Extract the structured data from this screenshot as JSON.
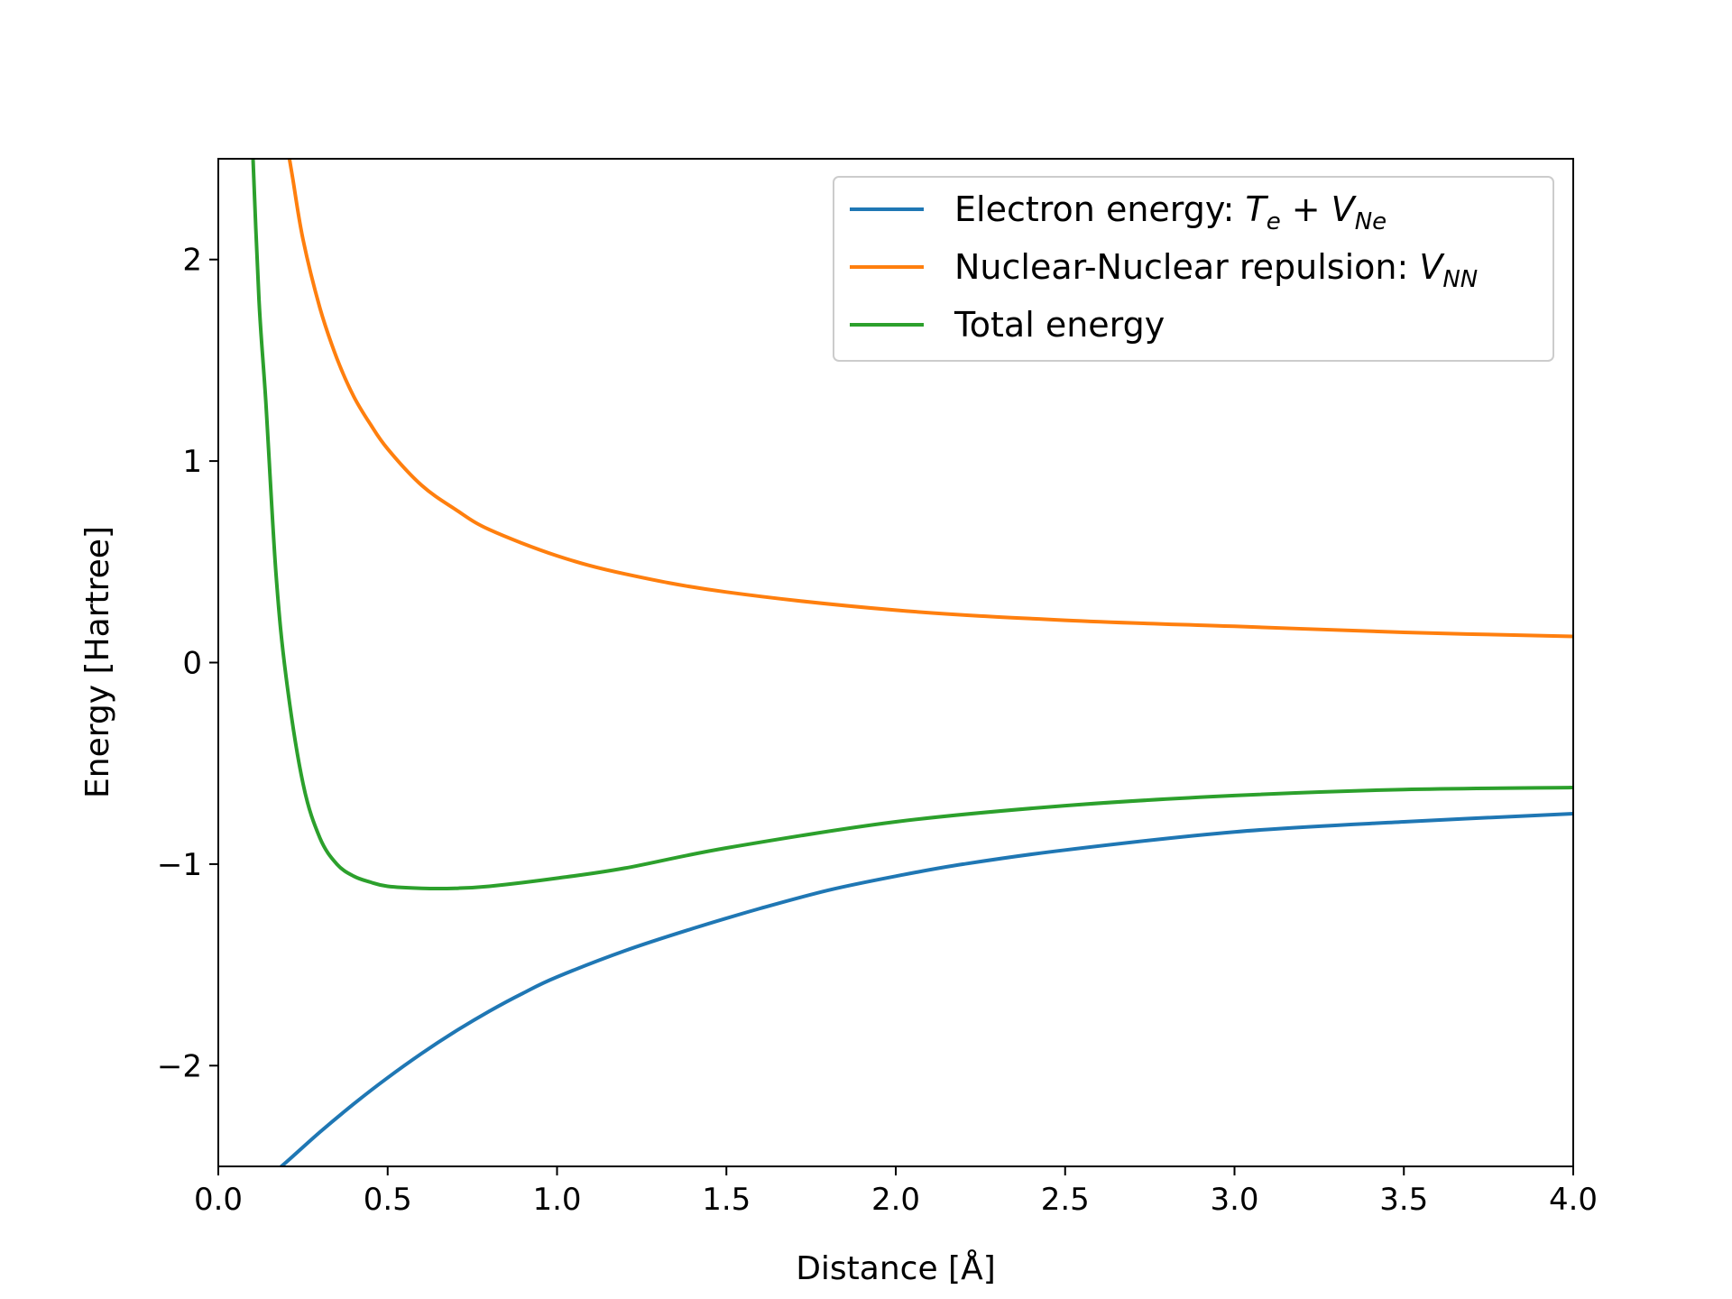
{
  "chart_data": {
    "type": "line",
    "xlabel": "Distance [Å]",
    "ylabel": "Energy [Hartree]",
    "xlim": [
      0.0,
      4.0
    ],
    "ylim": [
      -2.5,
      2.5
    ],
    "xticks": [
      "0.0",
      "0.5",
      "1.0",
      "1.5",
      "2.0",
      "2.5",
      "3.0",
      "3.5",
      "4.0"
    ],
    "yticks": [
      "−2",
      "−1",
      "0",
      "1",
      "2"
    ],
    "grid": false,
    "legend_position": "top-right",
    "legend": [
      {
        "text": "Electron energy: ",
        "math": "T",
        "sub": "e",
        "math2": " + V",
        "sub2": "Ne",
        "color": "#1f77b4"
      },
      {
        "text": "Nuclear-Nuclear repulsion: ",
        "math": "V",
        "sub": "NN",
        "color": "#ff7f0e"
      },
      {
        "text": "Total energy",
        "color": "#2ca02c"
      }
    ],
    "series": [
      {
        "name": "Electron energy: Te + VNe",
        "color": "#1f77b4",
        "x": [
          0.15,
          0.2,
          0.3,
          0.4,
          0.5,
          0.6,
          0.7,
          0.8,
          0.9,
          1.0,
          1.2,
          1.4,
          1.6,
          1.8,
          2.0,
          2.2,
          2.5,
          3.0,
          3.5,
          4.0
        ],
        "y": [
          -2.55,
          -2.48,
          -2.33,
          -2.19,
          -2.06,
          -1.94,
          -1.83,
          -1.73,
          -1.64,
          -1.56,
          -1.43,
          -1.32,
          -1.22,
          -1.13,
          -1.06,
          -1.0,
          -0.93,
          -0.84,
          -0.79,
          -0.75
        ]
      },
      {
        "name": "Nuclear-Nuclear repulsion: VNN",
        "color": "#ff7f0e",
        "x": [
          0.2,
          0.22,
          0.25,
          0.3,
          0.35,
          0.4,
          0.45,
          0.5,
          0.6,
          0.7,
          0.8,
          1.0,
          1.2,
          1.5,
          2.0,
          2.5,
          3.0,
          3.5,
          4.0
        ],
        "y": [
          2.6,
          2.4,
          2.1,
          1.76,
          1.51,
          1.32,
          1.18,
          1.06,
          0.88,
          0.76,
          0.66,
          0.53,
          0.44,
          0.35,
          0.26,
          0.21,
          0.18,
          0.15,
          0.13
        ]
      },
      {
        "name": "Total energy",
        "color": "#2ca02c",
        "x": [
          0.1,
          0.12,
          0.14,
          0.17,
          0.2,
          0.25,
          0.3,
          0.35,
          0.4,
          0.45,
          0.5,
          0.6,
          0.7,
          0.8,
          1.0,
          1.2,
          1.5,
          2.0,
          2.5,
          3.0,
          3.5,
          4.0
        ],
        "y": [
          2.6,
          1.8,
          1.3,
          0.45,
          -0.07,
          -0.6,
          -0.87,
          -1.0,
          -1.06,
          -1.09,
          -1.11,
          -1.12,
          -1.12,
          -1.11,
          -1.07,
          -1.02,
          -0.92,
          -0.79,
          -0.71,
          -0.66,
          -0.63,
          -0.62
        ]
      }
    ]
  }
}
